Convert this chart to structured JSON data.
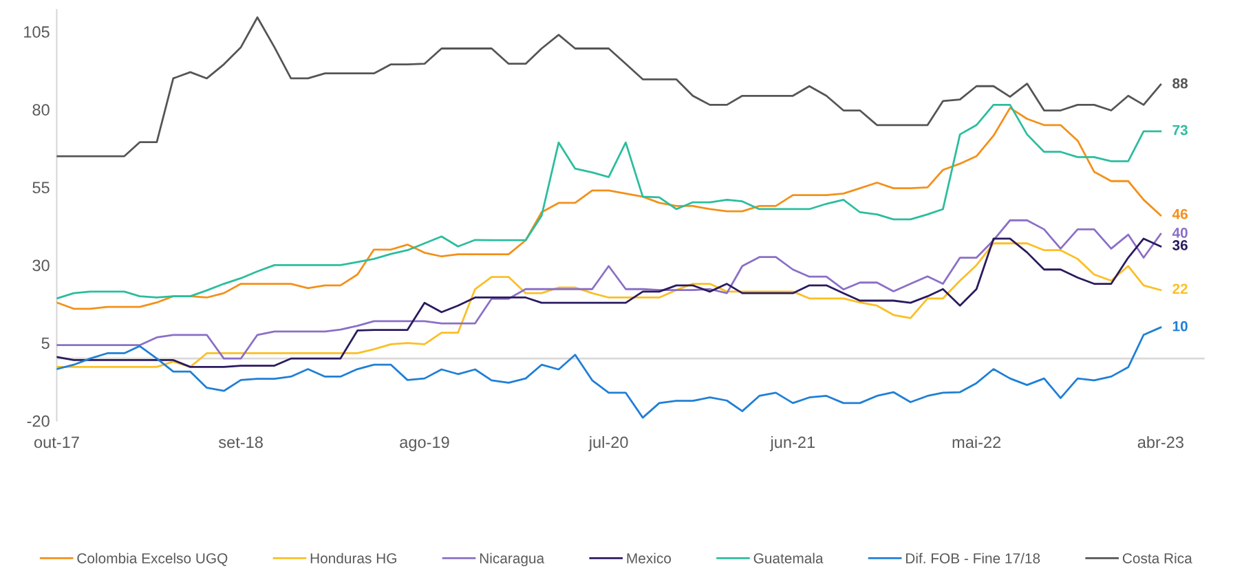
{
  "chart_data": {
    "type": "line",
    "x": [
      "2017-10",
      "2017-11",
      "2017-12",
      "2018-01",
      "2018-02",
      "2018-03",
      "2018-04",
      "2018-05",
      "2018-06",
      "2018-07",
      "2018-08",
      "2018-09",
      "2018-10",
      "2018-11",
      "2018-12",
      "2019-01",
      "2019-02",
      "2019-03",
      "2019-04",
      "2019-05",
      "2019-06",
      "2019-07",
      "2019-08",
      "2019-09",
      "2019-10",
      "2019-11",
      "2019-12",
      "2020-01",
      "2020-02",
      "2020-03",
      "2020-04",
      "2020-05",
      "2020-06",
      "2020-07",
      "2020-08",
      "2020-09",
      "2020-10",
      "2020-11",
      "2020-12",
      "2021-01",
      "2021-02",
      "2021-03",
      "2021-04",
      "2021-05",
      "2021-06",
      "2021-07",
      "2021-08",
      "2021-09",
      "2021-10",
      "2021-11",
      "2021-12",
      "2022-01",
      "2022-02",
      "2022-03",
      "2022-04",
      "2022-05",
      "2022-06",
      "2022-07",
      "2022-08",
      "2022-09",
      "2022-10",
      "2022-11",
      "2022-12",
      "2023-01",
      "2023-02",
      "2023-03",
      "2023-04"
    ],
    "series": [
      {
        "name": "Colombia Excelso UGQ",
        "color": "#f39019",
        "values": [
          18,
          16,
          16,
          16.6,
          16.6,
          16.6,
          18,
          20,
          20,
          19.6,
          21,
          24,
          24,
          24,
          24,
          22.6,
          23.5,
          23.5,
          27,
          35,
          35,
          36.6,
          34,
          32.8,
          33.5,
          33.5,
          33.5,
          33.5,
          38,
          47,
          50,
          50,
          54,
          54,
          53,
          52,
          50,
          49,
          49,
          48,
          47.3,
          47.3,
          49,
          49,
          52.5,
          52.5,
          52.5,
          53,
          54.7,
          56.5,
          54.7,
          54.7,
          55,
          60.6,
          62.6,
          65,
          71.6,
          80.5,
          77,
          75,
          75,
          70,
          60,
          57,
          57,
          51,
          46
        ],
        "value_labels": [
          null,
          null,
          null,
          null,
          null,
          null,
          null,
          null,
          null,
          null,
          null,
          null,
          null,
          null,
          null,
          null,
          null,
          null,
          null,
          null,
          null,
          null,
          null,
          null,
          null,
          null,
          null,
          null,
          null,
          null,
          null,
          null,
          null,
          null,
          null,
          null,
          null,
          null,
          null,
          null,
          null,
          null,
          null,
          null,
          null,
          null,
          null,
          null,
          null,
          null,
          null,
          null,
          null,
          null,
          null,
          null,
          null,
          null,
          null,
          null,
          null,
          null,
          null,
          null,
          null,
          null,
          "46"
        ]
      },
      {
        "name": "Honduras HG",
        "color": "#fbbf24",
        "values": [
          -2.7,
          -2.7,
          -2.7,
          -2.7,
          -2.7,
          -2.7,
          -2.7,
          -1,
          -2.7,
          1.7,
          1.7,
          1.7,
          1.7,
          1.7,
          1.7,
          1.7,
          1.7,
          1.7,
          1.7,
          3,
          4.6,
          5,
          4.6,
          8.3,
          8.3,
          22.3,
          26.2,
          26.2,
          21,
          21,
          22.8,
          22.8,
          21,
          19.6,
          19.6,
          19.6,
          19.6,
          22,
          24,
          24,
          21.5,
          21.5,
          21.5,
          21.5,
          21.5,
          19.3,
          19.3,
          19.3,
          18,
          17,
          14,
          13,
          19.3,
          19.3,
          25,
          30,
          37,
          37,
          37,
          34.8,
          34.8,
          32,
          27,
          25,
          29.7,
          23.5,
          22
        ],
        "value_labels": [
          null,
          null,
          null,
          null,
          null,
          null,
          null,
          null,
          null,
          null,
          null,
          null,
          null,
          null,
          null,
          null,
          null,
          null,
          null,
          null,
          null,
          null,
          null,
          null,
          null,
          null,
          null,
          null,
          null,
          null,
          null,
          null,
          null,
          null,
          null,
          null,
          null,
          null,
          null,
          null,
          null,
          null,
          null,
          null,
          null,
          null,
          null,
          null,
          null,
          null,
          null,
          null,
          null,
          null,
          null,
          null,
          null,
          null,
          null,
          null,
          null,
          null,
          null,
          null,
          null,
          null,
          "22"
        ]
      },
      {
        "name": "Nicaragua",
        "color": "#8a6fc7",
        "values": [
          4.3,
          4.3,
          4.3,
          4.3,
          4.3,
          4.3,
          6.8,
          7.6,
          7.6,
          7.6,
          0,
          0,
          7.6,
          8.7,
          8.7,
          8.7,
          8.7,
          9.3,
          10.5,
          12,
          12,
          12,
          12,
          11.3,
          11.3,
          11.3,
          19.2,
          19.2,
          22.3,
          22.3,
          22.3,
          22.3,
          22.3,
          29.7,
          22.3,
          22.3,
          22,
          22,
          22,
          22.3,
          21,
          29.7,
          32.6,
          32.6,
          28.6,
          26.3,
          26.3,
          22.2,
          24.4,
          24.4,
          21.6,
          24,
          26.4,
          24,
          32.4,
          32.4,
          38,
          44.4,
          44.4,
          41.5,
          35.3,
          41.5,
          41.5,
          35.3,
          39.8,
          32.4,
          40
        ],
        "value_labels": [
          null,
          null,
          null,
          null,
          null,
          null,
          null,
          null,
          null,
          null,
          null,
          null,
          null,
          null,
          null,
          null,
          null,
          null,
          null,
          null,
          null,
          null,
          null,
          null,
          null,
          null,
          null,
          null,
          null,
          null,
          null,
          null,
          null,
          null,
          null,
          null,
          null,
          null,
          null,
          null,
          null,
          null,
          null,
          null,
          null,
          null,
          null,
          null,
          null,
          null,
          null,
          null,
          null,
          null,
          null,
          null,
          null,
          null,
          null,
          null,
          null,
          null,
          null,
          null,
          null,
          null,
          "40"
        ]
      },
      {
        "name": "Mexico",
        "color": "#2a1a5e",
        "values": [
          0.5,
          -0.5,
          -0.5,
          -0.5,
          -0.5,
          -0.5,
          -0.5,
          -0.5,
          -2.7,
          -2.7,
          -2.7,
          -2.3,
          -2.3,
          -2.3,
          0,
          0,
          0,
          0,
          9,
          9.2,
          9.2,
          9.2,
          17.9,
          14.9,
          17,
          19.6,
          19.6,
          19.6,
          19.6,
          17.9,
          17.9,
          17.9,
          17.9,
          17.9,
          17.9,
          21.5,
          21.5,
          23.5,
          23.5,
          21.5,
          24,
          21,
          21,
          21,
          21,
          23.5,
          23.5,
          21,
          18.6,
          18.6,
          18.6,
          17.9,
          20,
          22.3,
          17,
          22.3,
          38.5,
          38.5,
          34.1,
          28.6,
          28.6,
          26,
          24,
          24,
          32.4,
          38.5,
          36
        ],
        "value_labels": [
          null,
          null,
          null,
          null,
          null,
          null,
          null,
          null,
          null,
          null,
          null,
          null,
          null,
          null,
          null,
          null,
          null,
          null,
          null,
          null,
          null,
          null,
          null,
          null,
          null,
          null,
          null,
          null,
          null,
          null,
          null,
          null,
          null,
          null,
          null,
          null,
          null,
          null,
          null,
          null,
          null,
          null,
          null,
          null,
          null,
          null,
          null,
          null,
          null,
          null,
          null,
          null,
          null,
          null,
          null,
          null,
          null,
          null,
          null,
          null,
          null,
          null,
          null,
          null,
          null,
          null,
          "36"
        ]
      },
      {
        "name": "Guatemala",
        "color": "#2bbd9e",
        "values": [
          19.3,
          21,
          21.5,
          21.5,
          21.5,
          20,
          19.6,
          20,
          20,
          21.9,
          24,
          25.8,
          28,
          30,
          30,
          30,
          30,
          30,
          31,
          32,
          33.6,
          34.8,
          37,
          39.2,
          36,
          38.1,
          38,
          38,
          38,
          45.9,
          69.4,
          61,
          59.8,
          58.3,
          69.4,
          52,
          51.8,
          48,
          50.2,
          50.2,
          51,
          50.5,
          48,
          48,
          48,
          48,
          49.7,
          51,
          47,
          46.3,
          44.7,
          44.7,
          46.3,
          48,
          72,
          75,
          81.5,
          81.5,
          72,
          66.4,
          66.4,
          64.7,
          64.7,
          63.4,
          63.4,
          73,
          73
        ],
        "value_labels": [
          null,
          null,
          null,
          null,
          null,
          null,
          null,
          null,
          null,
          null,
          null,
          null,
          null,
          null,
          null,
          null,
          null,
          null,
          null,
          null,
          null,
          null,
          null,
          null,
          null,
          null,
          null,
          null,
          null,
          null,
          null,
          null,
          null,
          null,
          null,
          null,
          null,
          null,
          null,
          null,
          null,
          null,
          null,
          null,
          null,
          null,
          null,
          null,
          null,
          null,
          null,
          null,
          null,
          null,
          null,
          null,
          null,
          null,
          null,
          null,
          null,
          null,
          null,
          null,
          null,
          null,
          "73"
        ]
      },
      {
        "name": "Dif. FOB - Fine 17/18",
        "color": "#1f7fd6",
        "values": [
          -3.4,
          -2,
          0,
          1.7,
          1.7,
          4,
          0,
          -4.2,
          -4.2,
          -9.4,
          -10.4,
          -6.9,
          -6.5,
          -6.5,
          -5.8,
          -3.4,
          -5.8,
          -5.8,
          -3.4,
          -2,
          -2,
          -6.9,
          -6.4,
          -3.5,
          -5,
          -3.5,
          -7,
          -7.8,
          -6.4,
          -2,
          -3.5,
          1.2,
          -7,
          -11,
          -11,
          -19,
          -14.3,
          -13.6,
          -13.6,
          -12.5,
          -13.5,
          -16.9,
          -12,
          -11,
          -14.3,
          -12.5,
          -12,
          -14.3,
          -14.3,
          -12,
          -10.8,
          -14,
          -12,
          -11,
          -10.8,
          -7.9,
          -3.4,
          -6.4,
          -8.5,
          -6.4,
          -12.7,
          -6.4,
          -7,
          -5.8,
          -2.8,
          7.6,
          10
        ],
        "value_labels": [
          null,
          null,
          null,
          null,
          null,
          null,
          null,
          null,
          null,
          null,
          null,
          null,
          null,
          null,
          null,
          null,
          null,
          null,
          null,
          null,
          null,
          null,
          null,
          null,
          null,
          null,
          null,
          null,
          null,
          null,
          null,
          null,
          null,
          null,
          null,
          null,
          null,
          null,
          null,
          null,
          null,
          null,
          null,
          null,
          null,
          null,
          null,
          null,
          null,
          null,
          null,
          null,
          null,
          null,
          null,
          null,
          null,
          null,
          null,
          null,
          null,
          null,
          null,
          null,
          null,
          null,
          "10"
        ]
      },
      {
        "name": "Costa Rica",
        "color": "#555555",
        "values": [
          65,
          65,
          65,
          65,
          65,
          69.5,
          69.5,
          90,
          92,
          90,
          94.5,
          100,
          109.6,
          100,
          90,
          90,
          91.6,
          91.6,
          91.6,
          91.6,
          94.5,
          94.5,
          94.7,
          99.6,
          99.6,
          99.6,
          99.6,
          94.7,
          94.7,
          99.6,
          104,
          99.6,
          99.6,
          99.6,
          94.7,
          89.7,
          89.7,
          89.7,
          84.4,
          81.5,
          81.5,
          84.4,
          84.4,
          84.4,
          84.4,
          87.5,
          84.4,
          79.7,
          79.7,
          75,
          75,
          75,
          75,
          82.7,
          83.2,
          87.5,
          87.5,
          84.1,
          88.3,
          79.7,
          79.7,
          81.5,
          81.5,
          79.7,
          84.4,
          81.5,
          88
        ],
        "value_labels": [
          null,
          null,
          null,
          null,
          null,
          null,
          null,
          null,
          null,
          null,
          null,
          null,
          null,
          null,
          null,
          null,
          null,
          null,
          null,
          null,
          null,
          null,
          null,
          null,
          null,
          null,
          null,
          null,
          null,
          null,
          null,
          null,
          null,
          null,
          null,
          null,
          null,
          null,
          null,
          null,
          null,
          null,
          null,
          null,
          null,
          null,
          null,
          null,
          null,
          null,
          null,
          null,
          null,
          null,
          null,
          null,
          null,
          null,
          null,
          null,
          null,
          null,
          null,
          null,
          null,
          null,
          "88"
        ]
      }
    ],
    "xlim": [
      "2017-10-01",
      "2023-06-20"
    ],
    "xticks": [
      {
        "value": "2017-10",
        "label": "out-17"
      },
      {
        "value": "2018-09",
        "label": "set-18"
      },
      {
        "value": "2019-08",
        "label": "ago-19"
      },
      {
        "value": "2020-07",
        "label": "jul-20"
      },
      {
        "value": "2021-06",
        "label": "jun-21"
      },
      {
        "value": "2022-05",
        "label": "mai-22"
      },
      {
        "value": "2023-04",
        "label": "abr-23"
      }
    ],
    "ylim": [
      -20,
      112
    ],
    "yticks": [
      -20,
      5,
      30,
      55,
      80,
      105
    ],
    "ref_lines": [
      {
        "axis": "y",
        "value": 0,
        "color": "#d9d9d9"
      }
    ],
    "grid": false,
    "legend": "bottom",
    "marker": "none",
    "line_style": "solid"
  }
}
